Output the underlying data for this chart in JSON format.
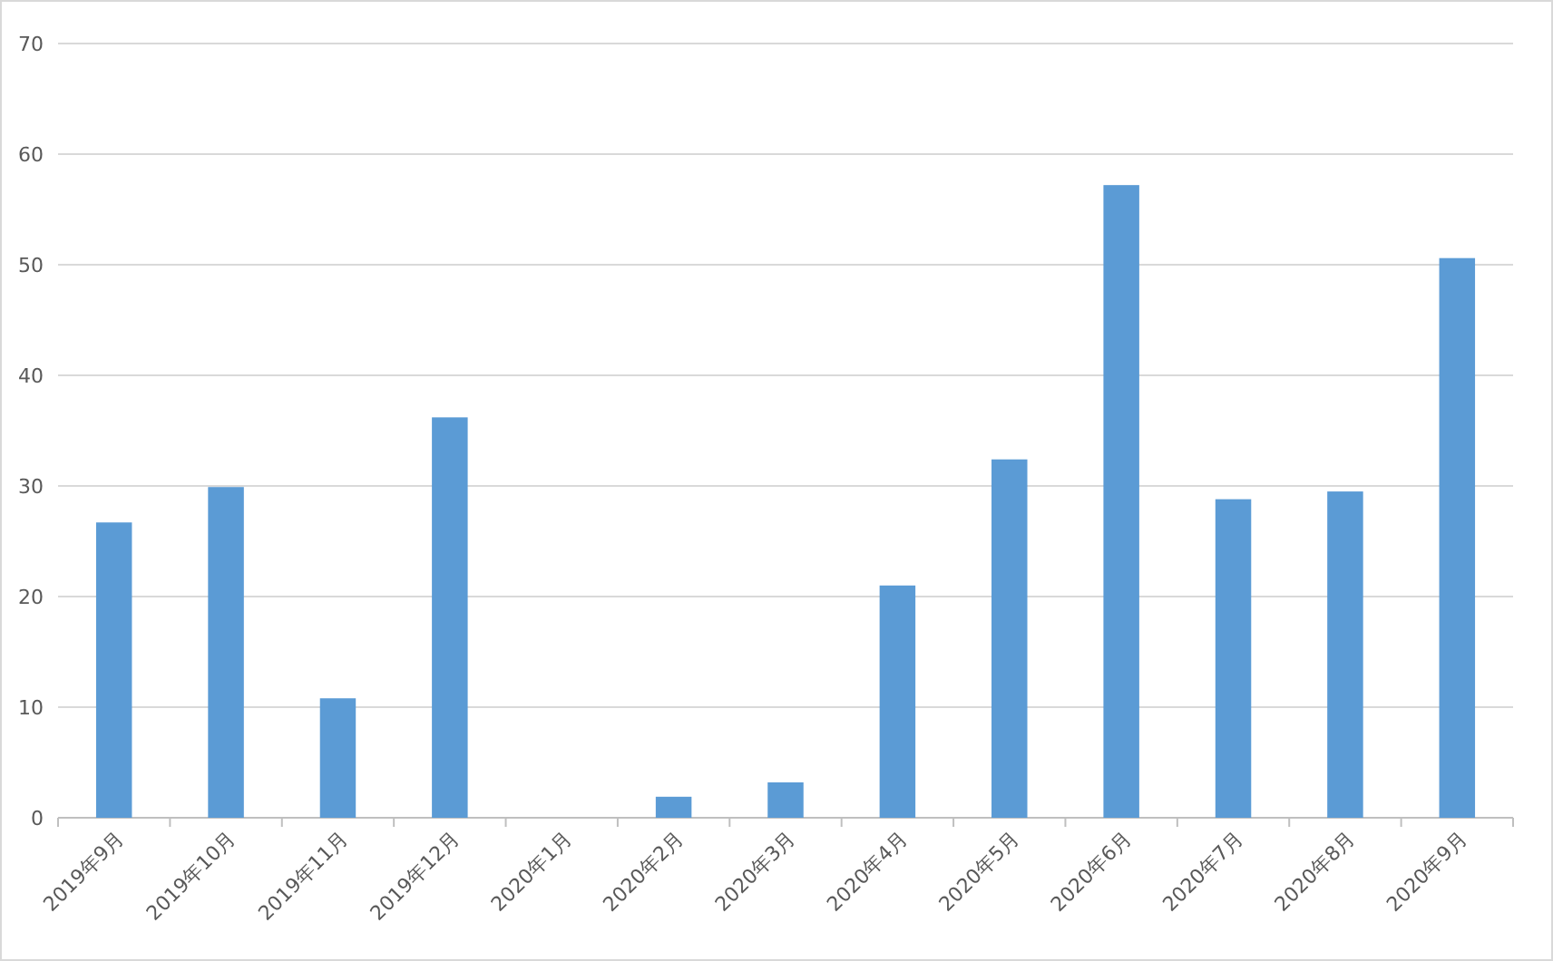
{
  "chart_data": {
    "type": "bar",
    "categories": [
      "2019年9月",
      "2019年10月",
      "2019年11月",
      "2019年12月",
      "2020年1月",
      "2020年2月",
      "2020年3月",
      "2020年4月",
      "2020年5月",
      "2020年6月",
      "2020年7月",
      "2020年8月",
      "2020年9月"
    ],
    "values": [
      26.7,
      29.9,
      10.8,
      36.2,
      0,
      1.9,
      3.2,
      21.0,
      32.4,
      57.2,
      28.8,
      29.5,
      50.6
    ],
    "color": "#5b9bd5",
    "ylim": [
      0,
      70
    ],
    "yticks": [
      0,
      10,
      20,
      30,
      40,
      50,
      60,
      70
    ],
    "grid": "y"
  }
}
